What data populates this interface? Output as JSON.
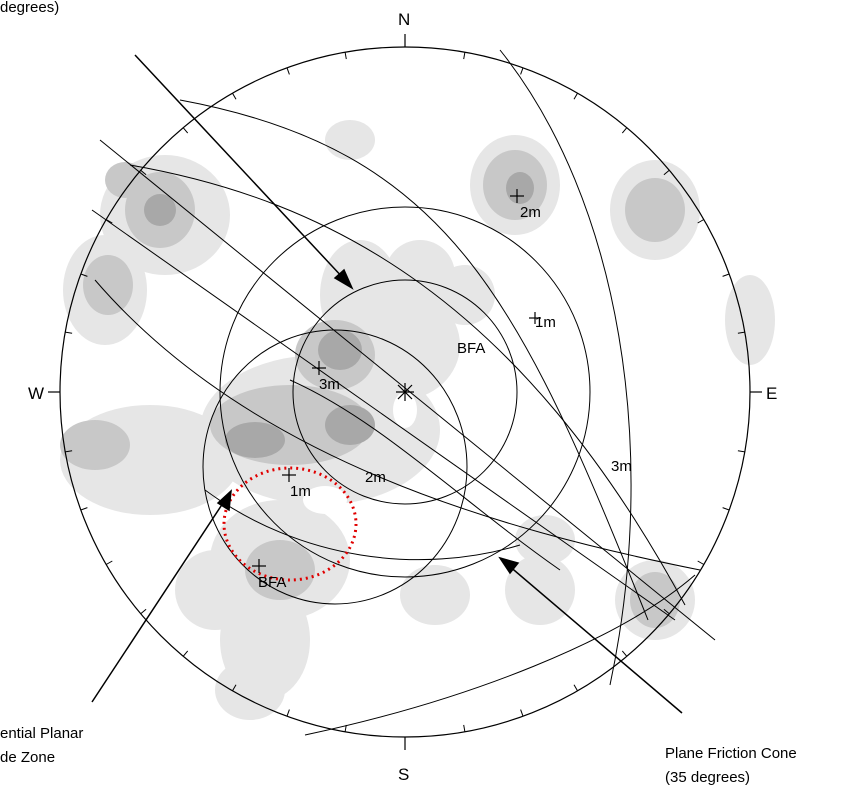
{
  "compass": {
    "north": "N",
    "south": "S",
    "east": "E",
    "west": "W"
  },
  "annotations": {
    "top_left_fragment": "degrees)",
    "planar_zone_line1": "ential Planar",
    "planar_zone_line2": "de Zone",
    "friction_cone_line1": "Plane Friction Cone",
    "friction_cone_line2": "(35 degrees)"
  },
  "pole_labels": {
    "p2m_ne": "2m",
    "p1m_e": "1m",
    "bfa_center": "BFA",
    "p3m_w": "3m",
    "p3m_e": "3m",
    "p2m_c": "2m",
    "p1m_sw": "1m",
    "bfa_sw": "BFA"
  },
  "colors": {
    "ink": "#000000",
    "contour_light": "#e6e6e6",
    "contour_mid": "#c8c8c8",
    "contour_dark": "#a8a8a8",
    "zone_dotted": "#e00000"
  }
}
